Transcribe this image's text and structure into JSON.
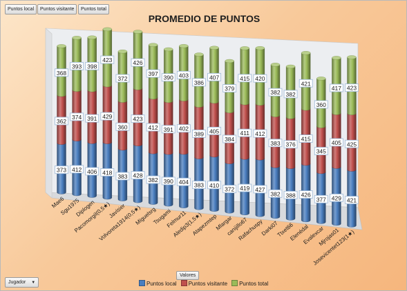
{
  "header": {
    "buttons": [
      {
        "label": "Puntos local"
      },
      {
        "label": "Puntos visitante"
      },
      {
        "label": "Puntos total"
      }
    ]
  },
  "footer": {
    "values_button": "Valores",
    "filter_button": "Jugador",
    "filter_arrow": "▼"
  },
  "chart_data": {
    "type": "bar",
    "stacked": true,
    "title": "PROMEDIO DE PUNTOS",
    "categories": [
      "Mae6",
      "Sgu1975",
      "Diplogen",
      "Pacomorgil(0,5★)",
      "Javisier",
      "Volvoreta1914(0,5★)",
      "Miguelsrg",
      "Tsugami",
      "Felmur11",
      "Aledip3(1,5★)",
      "Atapezmtep",
      "Mlargar",
      "canijillo67",
      "Rafachuspy",
      "Darki07",
      "Ttxet66",
      "Elenédal",
      "Evalexcar",
      "Mjrojas01",
      "Josevicentet123(1★)"
    ],
    "series": [
      {
        "name": "Puntos local",
        "color": "#4a7ebf",
        "values": [
          373,
          412,
          406,
          418,
          383,
          428,
          382,
          390,
          404,
          383,
          410,
          372,
          419,
          427,
          382,
          388,
          426,
          377,
          429,
          421
        ]
      },
      {
        "name": "Puntos visitante",
        "color": "#c0504d",
        "values": [
          362,
          374,
          391,
          429,
          360,
          423,
          412,
          391,
          402,
          389,
          405,
          384,
          411,
          412,
          383,
          376,
          415,
          345,
          405,
          425
        ]
      },
      {
        "name": "Puntos total",
        "color": "#9bbb59",
        "values": [
          368,
          393,
          398,
          423,
          372,
          426,
          397,
          390,
          403,
          386,
          407,
          379,
          415,
          420,
          382,
          382,
          421,
          360,
          417,
          423
        ]
      }
    ],
    "legend": "bottom",
    "grid": false
  }
}
